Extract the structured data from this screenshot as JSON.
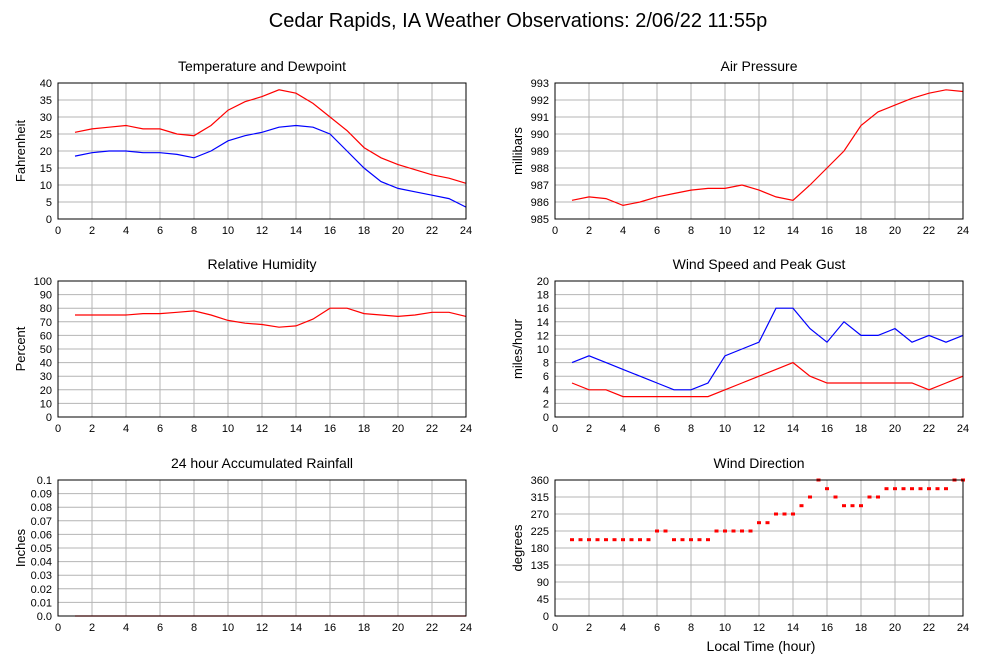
{
  "page": {
    "title": "Cedar Rapids, IA Weather Observations: 2/06/22 11:55p",
    "x_axis_label": "Local Time (hour)"
  },
  "chart_data": [
    {
      "id": "temp",
      "type": "line",
      "title": "Temperature and Dewpoint",
      "ylabel": "Fahrenheit",
      "xlim": [
        0,
        24
      ],
      "ylim": [
        0,
        40
      ],
      "yticks": [
        "0",
        "5",
        "10",
        "15",
        "20",
        "25",
        "30",
        "35",
        "40"
      ],
      "xticks": [
        "0",
        "2",
        "4",
        "6",
        "8",
        "10",
        "12",
        "14",
        "16",
        "18",
        "20",
        "22",
        "24"
      ],
      "series": [
        {
          "color": "#ff0000",
          "x": [
            1,
            2,
            3,
            4,
            5,
            6,
            7,
            8,
            9,
            10,
            11,
            12,
            13,
            14,
            15,
            16,
            17,
            18,
            19,
            20,
            21,
            22,
            23,
            24
          ],
          "y": [
            25.5,
            26.5,
            27,
            27.5,
            26.5,
            26.5,
            25,
            24.5,
            27.5,
            32,
            34.5,
            36,
            38,
            37,
            34,
            30,
            26,
            21,
            18,
            16,
            14.5,
            13,
            12,
            10.5
          ]
        },
        {
          "color": "#0000ff",
          "x": [
            1,
            2,
            3,
            4,
            5,
            6,
            7,
            8,
            9,
            10,
            11,
            12,
            13,
            14,
            15,
            16,
            17,
            18,
            19,
            20,
            21,
            22,
            23,
            24
          ],
          "y": [
            18.5,
            19.5,
            20,
            20,
            19.5,
            19.5,
            19,
            18,
            20,
            23,
            24.5,
            25.5,
            27,
            27.5,
            27,
            25,
            20,
            15,
            11,
            9,
            8,
            7,
            6,
            3.5
          ]
        }
      ]
    },
    {
      "id": "pressure",
      "type": "line",
      "title": "Air Pressure",
      "ylabel": "millibars",
      "xlim": [
        0,
        24
      ],
      "ylim": [
        985,
        993
      ],
      "yticks": [
        "985",
        "986",
        "987",
        "988",
        "989",
        "990",
        "991",
        "992",
        "993"
      ],
      "xticks": [
        "0",
        "2",
        "4",
        "6",
        "8",
        "10",
        "12",
        "14",
        "16",
        "18",
        "20",
        "22",
        "24"
      ],
      "series": [
        {
          "color": "#ff0000",
          "x": [
            1,
            2,
            3,
            4,
            5,
            6,
            7,
            8,
            9,
            10,
            11,
            12,
            13,
            14,
            15,
            16,
            17,
            18,
            19,
            20,
            21,
            22,
            23,
            24
          ],
          "y": [
            986.1,
            986.3,
            986.2,
            985.8,
            986.0,
            986.3,
            986.5,
            986.7,
            986.8,
            986.8,
            987.0,
            986.7,
            986.3,
            986.1,
            987.0,
            988.0,
            989.0,
            990.5,
            991.3,
            991.7,
            992.1,
            992.4,
            992.6,
            992.5
          ]
        }
      ]
    },
    {
      "id": "rh",
      "type": "line",
      "title": "Relative Humidity",
      "ylabel": "Percent",
      "xlim": [
        0,
        24
      ],
      "ylim": [
        0,
        100
      ],
      "yticks": [
        "0",
        "10",
        "20",
        "30",
        "40",
        "50",
        "60",
        "70",
        "80",
        "90",
        "100"
      ],
      "xticks": [
        "0",
        "2",
        "4",
        "6",
        "8",
        "10",
        "12",
        "14",
        "16",
        "18",
        "20",
        "22",
        "24"
      ],
      "series": [
        {
          "color": "#ff0000",
          "x": [
            1,
            2,
            3,
            4,
            5,
            6,
            7,
            8,
            9,
            10,
            11,
            12,
            13,
            14,
            15,
            16,
            17,
            18,
            19,
            20,
            21,
            22,
            23,
            24
          ],
          "y": [
            75,
            75,
            75,
            75,
            76,
            76,
            77,
            78,
            75,
            71,
            69,
            68,
            66,
            67,
            72,
            80,
            80,
            76,
            75,
            74,
            75,
            77,
            77,
            74
          ]
        }
      ]
    },
    {
      "id": "wind",
      "type": "line",
      "title": "Wind Speed and Peak Gust",
      "ylabel": "miles/hour",
      "xlim": [
        0,
        24
      ],
      "ylim": [
        0,
        20
      ],
      "yticks": [
        "0",
        "2",
        "4",
        "6",
        "8",
        "10",
        "12",
        "14",
        "16",
        "18",
        "20"
      ],
      "xticks": [
        "0",
        "2",
        "4",
        "6",
        "8",
        "10",
        "12",
        "14",
        "16",
        "18",
        "20",
        "22",
        "24"
      ],
      "series": [
        {
          "color": "#0000ff",
          "x": [
            1,
            2,
            3,
            4,
            5,
            6,
            7,
            8,
            9,
            10,
            11,
            12,
            13,
            14,
            15,
            16,
            17,
            18,
            19,
            20,
            21,
            22,
            23,
            24
          ],
          "y": [
            8,
            9,
            8,
            7,
            6,
            5,
            4,
            4,
            5,
            9,
            10,
            11,
            16,
            16,
            13,
            11,
            14,
            12,
            12,
            13,
            11,
            12,
            11,
            12
          ]
        },
        {
          "color": "#ff0000",
          "x": [
            1,
            2,
            3,
            4,
            5,
            6,
            7,
            8,
            9,
            10,
            11,
            12,
            13,
            14,
            15,
            16,
            17,
            18,
            19,
            20,
            21,
            22,
            23,
            24
          ],
          "y": [
            5,
            4,
            4,
            3,
            3,
            3,
            3,
            3,
            3,
            4,
            5,
            6,
            7,
            8,
            6,
            5,
            5,
            5,
            5,
            5,
            5,
            4,
            5,
            6
          ]
        }
      ]
    },
    {
      "id": "rain",
      "type": "line",
      "title": "24 hour Accumulated Rainfall",
      "ylabel": "Inches",
      "xlim": [
        0,
        24
      ],
      "ylim": [
        0,
        0.1
      ],
      "yticks": [
        "0.0",
        "0.01",
        "0.02",
        "0.03",
        "0.04",
        "0.05",
        "0.06",
        "0.07",
        "0.08",
        "0.09",
        "0.1"
      ],
      "xticks": [
        "0",
        "2",
        "4",
        "6",
        "8",
        "10",
        "12",
        "14",
        "16",
        "18",
        "20",
        "22",
        "24"
      ],
      "series": [
        {
          "color": "#ff0000",
          "x": [
            1,
            24
          ],
          "y": [
            0,
            0
          ]
        }
      ]
    },
    {
      "id": "wdir",
      "type": "scatter",
      "title": "Wind Direction",
      "ylabel": "degrees",
      "xlim": [
        0,
        24
      ],
      "ylim": [
        0,
        360
      ],
      "yticks": [
        "0",
        "45",
        "90",
        "135",
        "180",
        "225",
        "270",
        "315",
        "360"
      ],
      "xticks": [
        "0",
        "2",
        "4",
        "6",
        "8",
        "10",
        "12",
        "14",
        "16",
        "18",
        "20",
        "22",
        "24"
      ],
      "series": [
        {
          "color": "#ff0000",
          "x": [
            1.0,
            1.5,
            2.0,
            2.5,
            3.0,
            3.5,
            4.0,
            4.5,
            5.0,
            5.5,
            6.0,
            6.5,
            7.0,
            7.5,
            8.0,
            8.5,
            9.0,
            9.5,
            10.0,
            10.5,
            11.0,
            11.5,
            12.0,
            12.5,
            13.0,
            13.5,
            14.0,
            14.5,
            15.0,
            15.5,
            16.0,
            16.5,
            17.0,
            17.5,
            18.0,
            18.5,
            19.0,
            19.5,
            20.0,
            20.5,
            21.0,
            21.5,
            22.0,
            22.5,
            23.0,
            23.5,
            24.0
          ],
          "y": [
            202,
            202,
            202,
            202,
            202,
            202,
            202,
            202,
            202,
            202,
            225,
            225,
            202,
            202,
            202,
            202,
            202,
            225,
            225,
            225,
            225,
            225,
            247,
            247,
            270,
            270,
            270,
            292,
            315,
            360,
            337,
            315,
            292,
            292,
            292,
            315,
            315,
            337,
            337,
            337,
            337,
            337,
            337,
            337,
            337,
            360,
            360
          ]
        }
      ]
    }
  ]
}
